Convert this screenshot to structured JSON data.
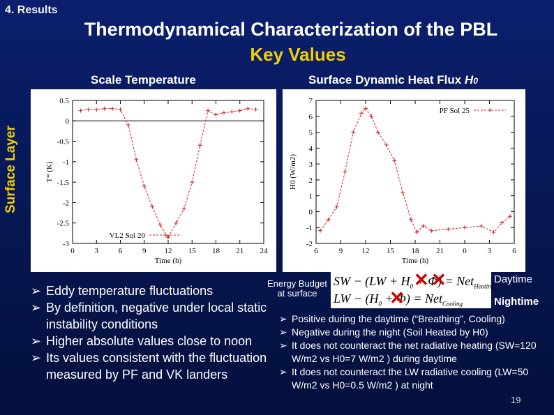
{
  "header": {
    "section": "4. Results",
    "title": "Thermodynamical Characterization of the PBL",
    "subtitle": "Key Values",
    "left_heading": "Scale Temperature",
    "right_heading_text": "Surface Dynamic Heat Flux ",
    "right_heading_symbol": "H",
    "right_heading_sub": "0",
    "vertical_label": "Surface Layer"
  },
  "chart_data": [
    {
      "type": "line",
      "title": "",
      "xlabel": "Time (h)",
      "ylabel": "T* (K)",
      "xlim": [
        0,
        24
      ],
      "ylim": [
        -3,
        0.5
      ],
      "xticks": [
        "0",
        "3",
        "6",
        "9",
        "12",
        "15",
        "18",
        "21",
        "24"
      ],
      "yticks": [
        "0.5",
        "0",
        "-0.5",
        "-1",
        "-1.5",
        "-2",
        "-2.5",
        "-3"
      ],
      "legend": "VL2 Sol 20",
      "legend_position": "bottom-left",
      "reference_line": 0,
      "series": [
        {
          "name": "VL2 Sol 20",
          "color": "#d42020",
          "x": [
            1,
            2,
            3,
            4,
            5,
            6,
            7,
            8,
            9,
            10,
            11,
            12,
            13,
            14,
            15,
            16,
            17,
            18,
            19,
            20,
            21,
            22,
            23
          ],
          "y": [
            0.25,
            0.28,
            0.27,
            0.3,
            0.3,
            0.28,
            -0.1,
            -0.95,
            -1.6,
            -2.1,
            -2.55,
            -2.85,
            -2.5,
            -2.15,
            -1.5,
            -0.6,
            0.25,
            0.15,
            0.2,
            0.22,
            0.25,
            0.3,
            0.28
          ]
        }
      ]
    },
    {
      "type": "line",
      "title": "",
      "xlabel": "Time (h)",
      "ylabel": "H0 (W/m2)",
      "xlim": [
        6,
        30
      ],
      "ylim": [
        -2,
        7
      ],
      "xticks": [
        "6",
        "9",
        "12",
        "15",
        "18",
        "21",
        "0",
        "3",
        "6"
      ],
      "yticks": [
        "7",
        "6",
        "5",
        "4",
        "3",
        "2",
        "1",
        "0",
        "-1",
        "-2"
      ],
      "legend": "PF Sol 25",
      "legend_position": "top-right",
      "series": [
        {
          "name": "PF Sol 25",
          "color": "#d42020",
          "x": [
            6.5,
            7.5,
            8.5,
            9.5,
            10.5,
            11.5,
            12.0,
            12.7,
            13.5,
            14.5,
            15.5,
            16.5,
            17.5,
            18.2,
            19.0,
            20.0,
            22.0,
            24.0,
            26.0,
            27.5,
            28.5,
            29.5
          ],
          "y": [
            -1.2,
            -0.5,
            0.3,
            2.5,
            5.0,
            6.2,
            6.5,
            6.0,
            5.0,
            4.2,
            3.2,
            1.2,
            -0.5,
            -1.3,
            -0.9,
            -1.2,
            -1.1,
            -1.0,
            -0.9,
            -1.3,
            -0.7,
            -0.3
          ]
        }
      ]
    }
  ],
  "bullets_left": [
    "Eddy temperature fluctuations",
    "By definition, negative under local static instability conditions",
    "Higher absolute values close to noon",
    "Its values consistent with the fluctuation measured by PF and VK landers"
  ],
  "energy_budget": {
    "label_line1": "Energy Budget",
    "label_line2": "at surface",
    "daytime_label": "Daytime",
    "nighttime_label": "Nightime"
  },
  "bullets_right": [
    "Positive during the daytime (“Breathing”, Cooling)",
    "Negative during the night (Soil Heated by H0)",
    "It does not counteract the net radiative heating (SW=120 W/m2 vs H0=7 W/m2 ) during daytime",
    "It does not counteract the LW radiative cooling (LW=50 W/m2 vs H0=0.5 W/m2 ) at night"
  ],
  "page_number": "19",
  "colors": {
    "background": "#061650",
    "accent": "#f0d000",
    "series": "#d42020",
    "cross": "#d10000"
  }
}
